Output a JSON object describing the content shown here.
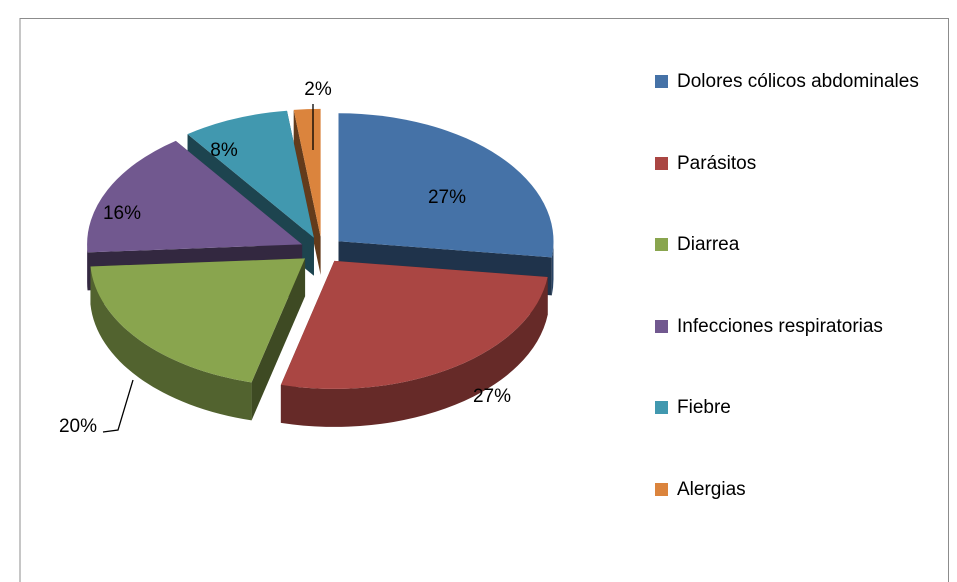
{
  "chart_data": {
    "type": "pie",
    "categories": [
      "Dolores cólicos abdominales",
      "Parásitos",
      "Diarrea",
      "Infecciones respiratorias",
      "Fiebre",
      "Alergias"
    ],
    "values": [
      27,
      27,
      20,
      16,
      8,
      2
    ],
    "value_labels": [
      "27%",
      "27%",
      "20%",
      "16%",
      "8%",
      "2%"
    ],
    "colors": [
      "#4572a7",
      "#aa4643",
      "#89a54e",
      "#71588f",
      "#4198af",
      "#db843d"
    ],
    "legend": "right"
  }
}
